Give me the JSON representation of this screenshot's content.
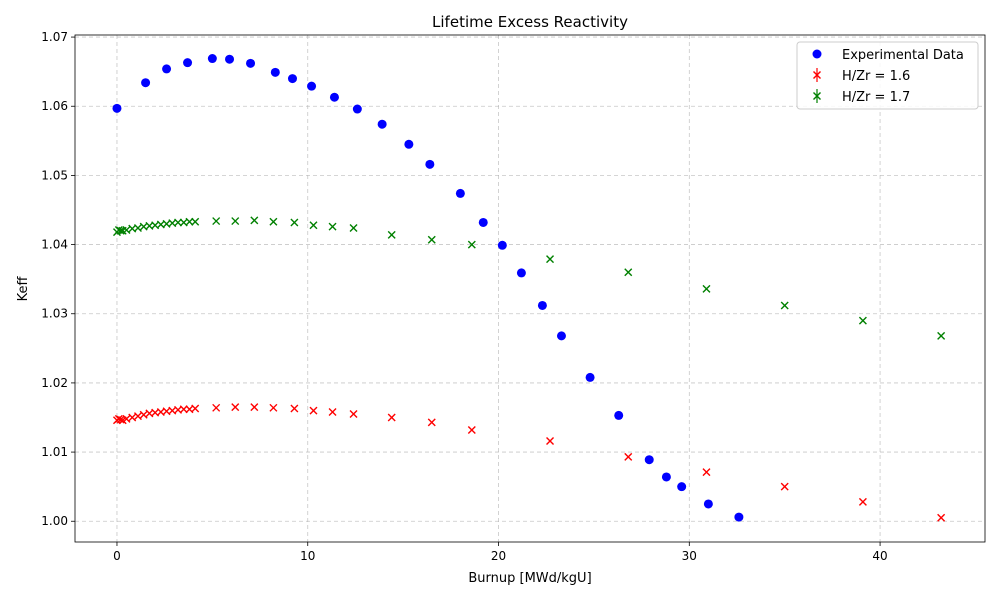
{
  "chart_data": {
    "type": "scatter",
    "title": "Lifetime Excess Reactivity",
    "xlabel": "Burnup [MWd/kgU]",
    "ylabel": "Keff",
    "xlim": [
      -2.2,
      45.5
    ],
    "ylim": [
      0.997,
      1.0703
    ],
    "x_ticks": [
      0,
      10,
      20,
      30,
      40
    ],
    "x_tick_labels": [
      "0",
      "10",
      "20",
      "30",
      "40"
    ],
    "y_ticks": [
      1.0,
      1.01,
      1.02,
      1.03,
      1.04,
      1.05,
      1.06,
      1.07
    ],
    "y_tick_labels": [
      "1.00",
      "1.01",
      "1.02",
      "1.03",
      "1.04",
      "1.05",
      "1.06",
      "1.07"
    ],
    "grid": true,
    "legend_position": "top-right",
    "series": [
      {
        "name": "Experimental Data",
        "marker": "circle",
        "color": "#0000ff",
        "x": [
          0.0,
          1.5,
          2.6,
          3.7,
          5.0,
          5.9,
          7.0,
          8.3,
          9.2,
          10.2,
          11.4,
          12.6,
          13.9,
          15.3,
          16.4,
          18.0,
          19.2,
          20.2,
          21.2,
          22.3,
          23.3,
          24.8,
          26.3,
          27.9,
          28.8,
          29.6,
          31.0,
          32.6
        ],
        "y": [
          1.0597,
          1.0634,
          1.0654,
          1.0663,
          1.0669,
          1.0668,
          1.0662,
          1.0649,
          1.064,
          1.0629,
          1.0613,
          1.0596,
          1.0574,
          1.0545,
          1.0516,
          1.0474,
          1.0432,
          1.0399,
          1.0359,
          1.0312,
          1.0268,
          1.0208,
          1.0153,
          1.0089,
          1.0064,
          1.005,
          1.0025,
          1.0006
        ]
      },
      {
        "name": "H/Zr = 1.6",
        "marker": "x",
        "color": "#ff0000",
        "x": [
          0.0,
          0.1,
          0.2,
          0.3,
          0.5,
          0.8,
          1.1,
          1.4,
          1.7,
          2.0,
          2.3,
          2.6,
          2.9,
          3.2,
          3.5,
          3.8,
          4.1,
          5.2,
          6.2,
          7.2,
          8.2,
          9.3,
          10.3,
          11.3,
          12.4,
          14.4,
          16.5,
          18.6,
          22.7,
          26.8,
          30.9,
          35.0,
          39.1,
          43.2
        ],
        "y": [
          1.0146,
          1.0148,
          1.0147,
          1.0146,
          1.0148,
          1.015,
          1.0152,
          1.0154,
          1.0156,
          1.0157,
          1.0158,
          1.0159,
          1.016,
          1.0161,
          1.0162,
          1.0162,
          1.0163,
          1.0164,
          1.0165,
          1.0165,
          1.0164,
          1.0163,
          1.016,
          1.0158,
          1.0155,
          1.015,
          1.0143,
          1.0132,
          1.0116,
          1.0093,
          1.0071,
          1.005,
          1.0028,
          1.0005
        ]
      },
      {
        "name": "H/Zr = 1.7",
        "marker": "x",
        "color": "#008000",
        "x": [
          0.0,
          0.1,
          0.2,
          0.3,
          0.5,
          0.8,
          1.1,
          1.4,
          1.7,
          2.0,
          2.3,
          2.6,
          2.9,
          3.2,
          3.5,
          3.8,
          4.1,
          5.2,
          6.2,
          7.2,
          8.2,
          9.3,
          10.3,
          11.3,
          12.4,
          14.4,
          16.5,
          18.6,
          22.7,
          26.8,
          30.9,
          35.0,
          39.1,
          43.2
        ],
        "y": [
          1.0418,
          1.0421,
          1.042,
          1.042,
          1.0421,
          1.0423,
          1.0424,
          1.0426,
          1.0427,
          1.0428,
          1.0429,
          1.043,
          1.0431,
          1.0432,
          1.0432,
          1.0433,
          1.0433,
          1.0434,
          1.0434,
          1.0435,
          1.0433,
          1.0432,
          1.0428,
          1.0426,
          1.0424,
          1.0414,
          1.0407,
          1.04,
          1.0379,
          1.036,
          1.0336,
          1.0312,
          1.029,
          1.0268
        ]
      }
    ]
  }
}
